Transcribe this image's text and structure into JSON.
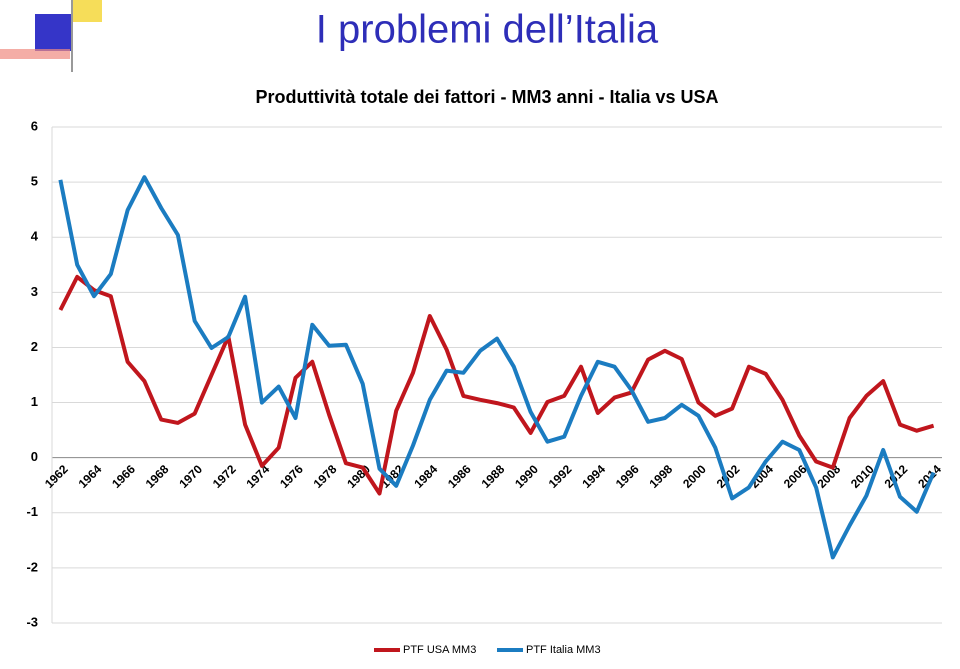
{
  "header": {
    "title": "I problemi dell’Italia"
  },
  "chart_data": {
    "type": "line",
    "title": "Produttività totale dei fattori - MM3 anni - Italia vs USA",
    "categories": [
      "1962",
      null,
      "1964",
      null,
      "1966",
      null,
      "1968",
      null,
      "1970",
      null,
      "1972",
      null,
      "1974",
      null,
      "1976",
      null,
      "1978",
      null,
      "1980",
      null,
      "1982",
      null,
      "1984",
      null,
      "1986",
      null,
      "1988",
      null,
      "1990",
      null,
      "1992",
      null,
      "1994",
      null,
      "1996",
      null,
      "1998",
      null,
      "2000",
      null,
      "2002",
      null,
      "2004",
      null,
      "2006",
      null,
      "2008",
      null,
      "2010",
      null,
      "2012",
      null,
      "2014"
    ],
    "series": [
      {
        "name": "PTF USA MM3",
        "color": "#c0161d",
        "values": [
          2.68,
          3.28,
          3.04,
          2.93,
          1.74,
          1.39,
          0.69,
          0.63,
          0.8,
          1.5,
          2.2,
          0.6,
          -0.15,
          0.18,
          1.45,
          1.74,
          0.78,
          -0.1,
          -0.18,
          -0.65,
          0.85,
          1.54,
          2.57,
          1.96,
          1.12,
          1.05,
          0.99,
          0.91,
          0.45,
          1.01,
          1.12,
          1.65,
          0.81,
          1.09,
          1.18,
          1.78,
          1.94,
          1.79,
          1.0,
          0.76,
          0.89,
          1.65,
          1.52,
          1.05,
          0.4,
          -0.07,
          -0.18,
          0.72,
          1.12,
          1.39,
          0.6,
          0.49,
          0.58
        ]
      },
      {
        "name": "PTF Italia MM3",
        "color": "#1b7cc1",
        "values": [
          5.04,
          3.5,
          2.93,
          3.33,
          4.49,
          5.09,
          4.53,
          4.04,
          2.48,
          1.99,
          2.19,
          2.92,
          1.0,
          1.29,
          0.72,
          2.41,
          2.03,
          2.05,
          1.34,
          -0.2,
          -0.51,
          0.22,
          1.05,
          1.58,
          1.54,
          1.94,
          2.16,
          1.65,
          0.83,
          0.29,
          0.38,
          1.12,
          1.74,
          1.65,
          1.23,
          0.65,
          0.72,
          0.96,
          0.76,
          0.18,
          -0.74,
          -0.54,
          -0.07,
          0.29,
          0.14,
          -0.54,
          -1.81,
          -1.23,
          -0.69,
          0.14,
          -0.71,
          -0.98,
          -0.27
        ]
      }
    ],
    "ylim": [
      -3,
      6
    ],
    "yticks": [
      -3,
      -2,
      -1,
      0,
      1,
      2,
      3,
      4,
      5,
      6
    ],
    "grid": true,
    "legend": "bottom"
  }
}
